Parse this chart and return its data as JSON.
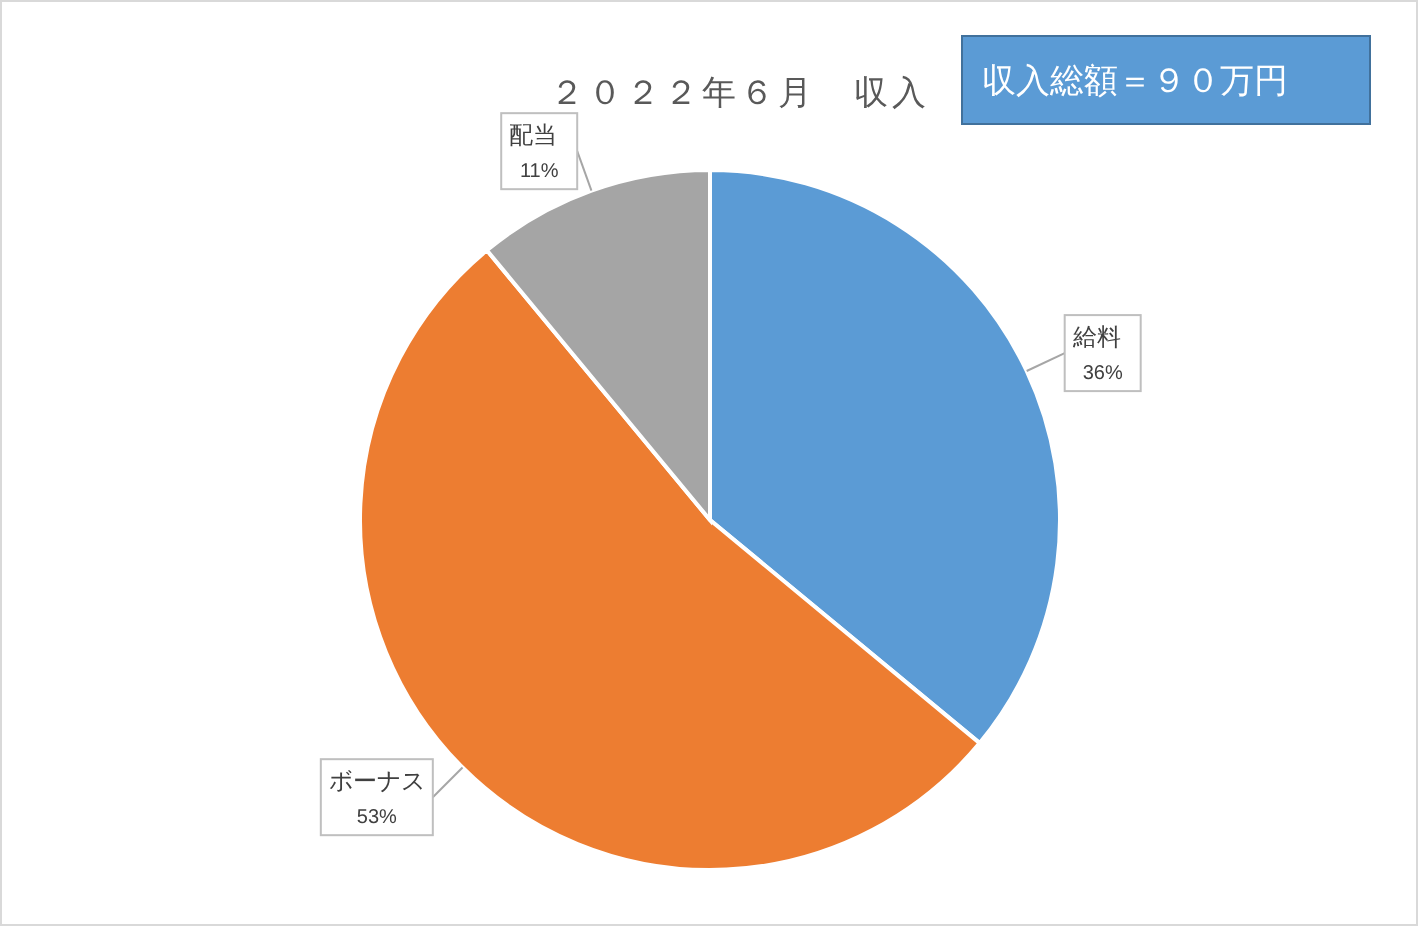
{
  "chart_data": {
    "type": "pie",
    "title": "２０２２年６月　収入",
    "categories": [
      "給料",
      "ボーナス",
      "配当"
    ],
    "values": [
      36,
      53,
      11
    ],
    "colors": [
      "#5b9bd5",
      "#ed7d31",
      "#a5a5a5"
    ],
    "value_labels": [
      "36%",
      "53%",
      "11%"
    ],
    "legend": false,
    "annotations": [
      "収入総額＝９０万円"
    ]
  }
}
